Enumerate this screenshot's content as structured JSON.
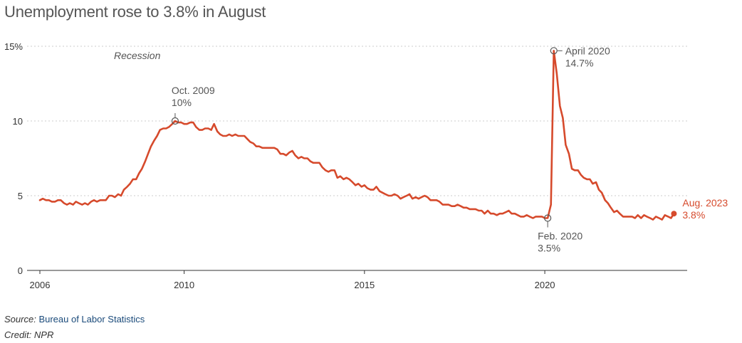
{
  "title": "Unemployment rose to 3.8% in August",
  "footer": {
    "source_label": "Source:",
    "source_name": "Bureau of Labor Statistics",
    "credit": "Credit: NPR"
  },
  "colors": {
    "line": "#d64a2c",
    "grid": "#cccccc",
    "axis": "#333333",
    "text": "#555555"
  },
  "chart_data": {
    "type": "line",
    "title": "Unemployment rose to 3.8% in August",
    "xlabel": "",
    "ylabel": "",
    "xlim": [
      2006,
      2023.75
    ],
    "ylim": [
      0,
      15
    ],
    "yticks": [
      0,
      5,
      10,
      15
    ],
    "ytick_labels": [
      "0",
      "5",
      "10",
      "15%"
    ],
    "xticks": [
      2006,
      2010,
      2015,
      2020
    ],
    "xtick_labels": [
      "2006",
      "2010",
      "2015",
      "2020"
    ],
    "grid": "horizontal dotted",
    "recession_label": "Recession",
    "series": [
      {
        "name": "",
        "points": [
          [
            2006.0,
            4.7
          ],
          [
            2006.08,
            4.8
          ],
          [
            2006.17,
            4.7
          ],
          [
            2006.25,
            4.7
          ],
          [
            2006.33,
            4.6
          ],
          [
            2006.42,
            4.6
          ],
          [
            2006.5,
            4.7
          ],
          [
            2006.58,
            4.7
          ],
          [
            2006.67,
            4.5
          ],
          [
            2006.75,
            4.4
          ],
          [
            2006.83,
            4.5
          ],
          [
            2006.92,
            4.4
          ],
          [
            2007.0,
            4.6
          ],
          [
            2007.08,
            4.5
          ],
          [
            2007.17,
            4.4
          ],
          [
            2007.25,
            4.5
          ],
          [
            2007.33,
            4.4
          ],
          [
            2007.42,
            4.6
          ],
          [
            2007.5,
            4.7
          ],
          [
            2007.58,
            4.6
          ],
          [
            2007.67,
            4.7
          ],
          [
            2007.75,
            4.7
          ],
          [
            2007.83,
            4.7
          ],
          [
            2007.92,
            5.0
          ],
          [
            2008.0,
            5.0
          ],
          [
            2008.08,
            4.9
          ],
          [
            2008.17,
            5.1
          ],
          [
            2008.25,
            5.0
          ],
          [
            2008.33,
            5.4
          ],
          [
            2008.42,
            5.6
          ],
          [
            2008.5,
            5.8
          ],
          [
            2008.58,
            6.1
          ],
          [
            2008.67,
            6.1
          ],
          [
            2008.75,
            6.5
          ],
          [
            2008.83,
            6.8
          ],
          [
            2008.92,
            7.3
          ],
          [
            2009.0,
            7.8
          ],
          [
            2009.08,
            8.3
          ],
          [
            2009.17,
            8.7
          ],
          [
            2009.25,
            9.0
          ],
          [
            2009.33,
            9.4
          ],
          [
            2009.42,
            9.5
          ],
          [
            2009.5,
            9.5
          ],
          [
            2009.58,
            9.6
          ],
          [
            2009.67,
            9.8
          ],
          [
            2009.75,
            10.0
          ],
          [
            2009.83,
            9.9
          ],
          [
            2009.92,
            9.9
          ],
          [
            2010.0,
            9.8
          ],
          [
            2010.08,
            9.8
          ],
          [
            2010.17,
            9.9
          ],
          [
            2010.25,
            9.9
          ],
          [
            2010.33,
            9.6
          ],
          [
            2010.42,
            9.4
          ],
          [
            2010.5,
            9.4
          ],
          [
            2010.58,
            9.5
          ],
          [
            2010.67,
            9.5
          ],
          [
            2010.75,
            9.4
          ],
          [
            2010.83,
            9.8
          ],
          [
            2010.92,
            9.3
          ],
          [
            2011.0,
            9.1
          ],
          [
            2011.08,
            9.0
          ],
          [
            2011.17,
            9.0
          ],
          [
            2011.25,
            9.1
          ],
          [
            2011.33,
            9.0
          ],
          [
            2011.42,
            9.1
          ],
          [
            2011.5,
            9.0
          ],
          [
            2011.58,
            9.0
          ],
          [
            2011.67,
            9.0
          ],
          [
            2011.75,
            8.8
          ],
          [
            2011.83,
            8.6
          ],
          [
            2011.92,
            8.5
          ],
          [
            2012.0,
            8.3
          ],
          [
            2012.08,
            8.3
          ],
          [
            2012.17,
            8.2
          ],
          [
            2012.25,
            8.2
          ],
          [
            2012.33,
            8.2
          ],
          [
            2012.42,
            8.2
          ],
          [
            2012.5,
            8.2
          ],
          [
            2012.58,
            8.1
          ],
          [
            2012.67,
            7.8
          ],
          [
            2012.75,
            7.8
          ],
          [
            2012.83,
            7.7
          ],
          [
            2012.92,
            7.9
          ],
          [
            2013.0,
            8.0
          ],
          [
            2013.08,
            7.7
          ],
          [
            2013.17,
            7.5
          ],
          [
            2013.25,
            7.6
          ],
          [
            2013.33,
            7.5
          ],
          [
            2013.42,
            7.5
          ],
          [
            2013.5,
            7.3
          ],
          [
            2013.58,
            7.2
          ],
          [
            2013.67,
            7.2
          ],
          [
            2013.75,
            7.2
          ],
          [
            2013.83,
            6.9
          ],
          [
            2013.92,
            6.7
          ],
          [
            2014.0,
            6.6
          ],
          [
            2014.08,
            6.7
          ],
          [
            2014.17,
            6.7
          ],
          [
            2014.25,
            6.2
          ],
          [
            2014.33,
            6.3
          ],
          [
            2014.42,
            6.1
          ],
          [
            2014.5,
            6.2
          ],
          [
            2014.58,
            6.1
          ],
          [
            2014.67,
            5.9
          ],
          [
            2014.75,
            5.7
          ],
          [
            2014.83,
            5.8
          ],
          [
            2014.92,
            5.6
          ],
          [
            2015.0,
            5.7
          ],
          [
            2015.08,
            5.5
          ],
          [
            2015.17,
            5.4
          ],
          [
            2015.25,
            5.4
          ],
          [
            2015.33,
            5.6
          ],
          [
            2015.42,
            5.3
          ],
          [
            2015.5,
            5.2
          ],
          [
            2015.58,
            5.1
          ],
          [
            2015.67,
            5.0
          ],
          [
            2015.75,
            5.0
          ],
          [
            2015.83,
            5.1
          ],
          [
            2015.92,
            5.0
          ],
          [
            2016.0,
            4.8
          ],
          [
            2016.08,
            4.9
          ],
          [
            2016.17,
            5.0
          ],
          [
            2016.25,
            5.1
          ],
          [
            2016.33,
            4.8
          ],
          [
            2016.42,
            4.9
          ],
          [
            2016.5,
            4.8
          ],
          [
            2016.58,
            4.9
          ],
          [
            2016.67,
            5.0
          ],
          [
            2016.75,
            4.9
          ],
          [
            2016.83,
            4.7
          ],
          [
            2016.92,
            4.7
          ],
          [
            2017.0,
            4.7
          ],
          [
            2017.08,
            4.6
          ],
          [
            2017.17,
            4.4
          ],
          [
            2017.25,
            4.4
          ],
          [
            2017.33,
            4.4
          ],
          [
            2017.42,
            4.3
          ],
          [
            2017.5,
            4.3
          ],
          [
            2017.58,
            4.4
          ],
          [
            2017.67,
            4.3
          ],
          [
            2017.75,
            4.2
          ],
          [
            2017.83,
            4.2
          ],
          [
            2017.92,
            4.1
          ],
          [
            2018.0,
            4.1
          ],
          [
            2018.08,
            4.1
          ],
          [
            2018.17,
            4.0
          ],
          [
            2018.25,
            4.0
          ],
          [
            2018.33,
            3.8
          ],
          [
            2018.42,
            4.0
          ],
          [
            2018.5,
            3.8
          ],
          [
            2018.58,
            3.8
          ],
          [
            2018.67,
            3.7
          ],
          [
            2018.75,
            3.8
          ],
          [
            2018.83,
            3.8
          ],
          [
            2018.92,
            3.9
          ],
          [
            2019.0,
            4.0
          ],
          [
            2019.08,
            3.8
          ],
          [
            2019.17,
            3.8
          ],
          [
            2019.25,
            3.7
          ],
          [
            2019.33,
            3.6
          ],
          [
            2019.42,
            3.6
          ],
          [
            2019.5,
            3.7
          ],
          [
            2019.58,
            3.6
          ],
          [
            2019.67,
            3.5
          ],
          [
            2019.75,
            3.6
          ],
          [
            2019.83,
            3.6
          ],
          [
            2019.92,
            3.6
          ],
          [
            2020.0,
            3.5
          ],
          [
            2020.08,
            3.5
          ],
          [
            2020.17,
            4.4
          ],
          [
            2020.25,
            14.7
          ],
          [
            2020.33,
            13.2
          ],
          [
            2020.42,
            11.0
          ],
          [
            2020.5,
            10.2
          ],
          [
            2020.58,
            8.4
          ],
          [
            2020.67,
            7.8
          ],
          [
            2020.75,
            6.8
          ],
          [
            2020.83,
            6.7
          ],
          [
            2020.92,
            6.7
          ],
          [
            2021.0,
            6.4
          ],
          [
            2021.08,
            6.2
          ],
          [
            2021.17,
            6.1
          ],
          [
            2021.25,
            6.1
          ],
          [
            2021.33,
            5.8
          ],
          [
            2021.42,
            5.9
          ],
          [
            2021.5,
            5.4
          ],
          [
            2021.58,
            5.2
          ],
          [
            2021.67,
            4.7
          ],
          [
            2021.75,
            4.5
          ],
          [
            2021.83,
            4.2
          ],
          [
            2021.92,
            3.9
          ],
          [
            2022.0,
            4.0
          ],
          [
            2022.08,
            3.8
          ],
          [
            2022.17,
            3.6
          ],
          [
            2022.25,
            3.6
          ],
          [
            2022.33,
            3.6
          ],
          [
            2022.42,
            3.6
          ],
          [
            2022.5,
            3.5
          ],
          [
            2022.58,
            3.7
          ],
          [
            2022.67,
            3.5
          ],
          [
            2022.75,
            3.7
          ],
          [
            2022.83,
            3.6
          ],
          [
            2022.92,
            3.5
          ],
          [
            2023.0,
            3.4
          ],
          [
            2023.08,
            3.6
          ],
          [
            2023.17,
            3.5
          ],
          [
            2023.25,
            3.4
          ],
          [
            2023.33,
            3.7
          ],
          [
            2023.42,
            3.6
          ],
          [
            2023.5,
            3.5
          ],
          [
            2023.58,
            3.8
          ]
        ]
      }
    ],
    "annotations": [
      {
        "x": 2009.75,
        "y": 10.0,
        "label": "Oct. 2009",
        "value": "10%",
        "position": "above"
      },
      {
        "x": 2020.25,
        "y": 14.7,
        "label": "April 2020",
        "value": "14.7%",
        "position": "right"
      },
      {
        "x": 2020.08,
        "y": 3.5,
        "label": "Feb. 2020",
        "value": "3.5%",
        "position": "below"
      },
      {
        "x": 2023.58,
        "y": 3.8,
        "label": "Aug. 2023",
        "value": "3.8%",
        "position": "right",
        "highlight": true
      }
    ]
  }
}
